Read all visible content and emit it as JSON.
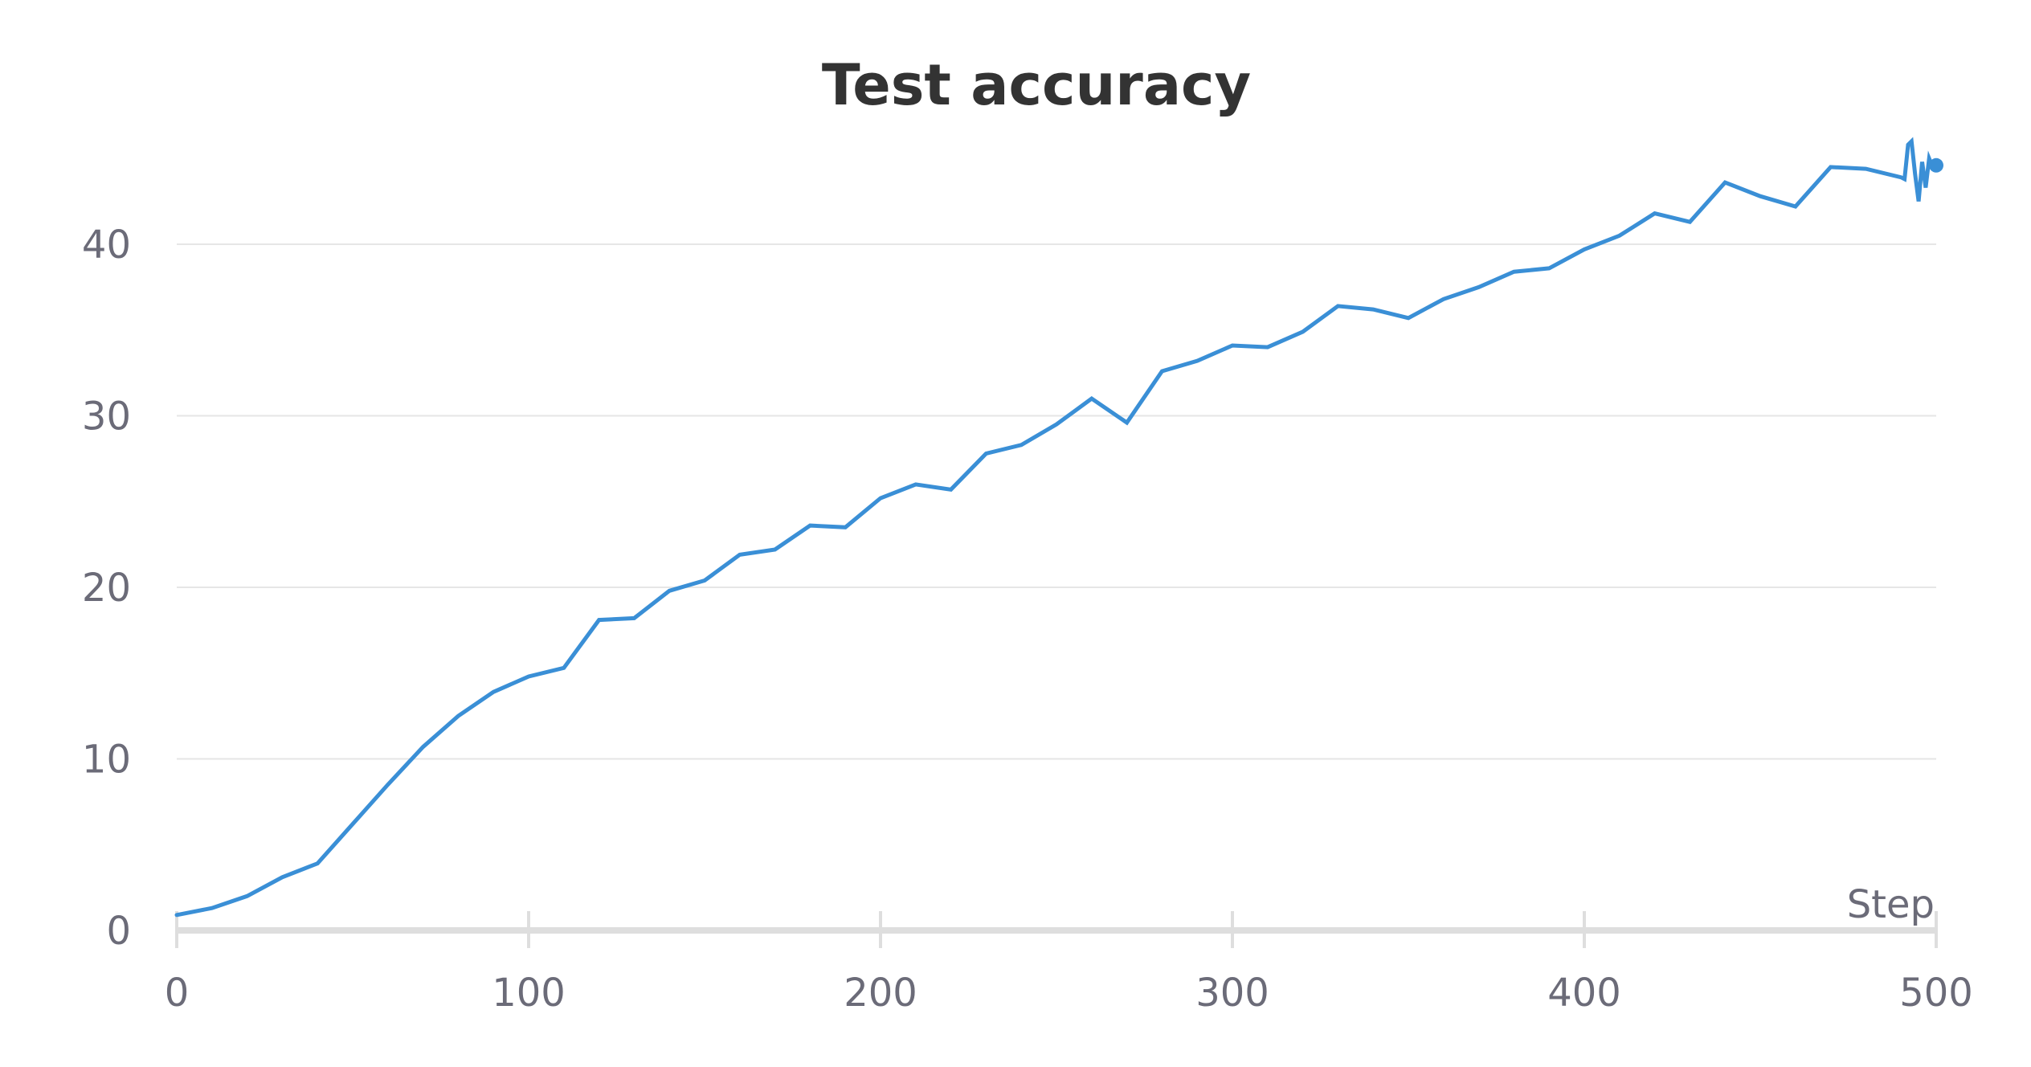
{
  "chart_data": {
    "type": "line",
    "title": "Test accuracy",
    "xlabel": "Step",
    "ylabel": "",
    "xlim": [
      0,
      500
    ],
    "ylim": [
      0,
      45
    ],
    "x_ticks": [
      0,
      100,
      200,
      300,
      400,
      500
    ],
    "y_ticks": [
      0,
      10,
      20,
      30,
      40
    ],
    "grid": "horizontal",
    "legend": "none",
    "series": [
      {
        "color": "#3a8fd6",
        "end_marker": true,
        "x": [
          0,
          10,
          20,
          30,
          40,
          50,
          60,
          70,
          80,
          90,
          100,
          110,
          120,
          130,
          140,
          150,
          160,
          170,
          180,
          190,
          200,
          210,
          220,
          230,
          240,
          250,
          260,
          270,
          280,
          290,
          300,
          310,
          320,
          330,
          340,
          350,
          360,
          370,
          380,
          390,
          400,
          410,
          420,
          430,
          440,
          450,
          460,
          470,
          480,
          490,
          491,
          492,
          493,
          494,
          495,
          496,
          497,
          498,
          499,
          500
        ],
        "y": [
          0.9,
          1.3,
          2.0,
          3.1,
          3.9,
          6.2,
          8.5,
          10.7,
          12.5,
          13.9,
          14.8,
          15.3,
          18.1,
          18.2,
          19.8,
          20.4,
          21.9,
          22.2,
          23.6,
          23.5,
          25.2,
          26.0,
          25.7,
          27.8,
          28.3,
          29.5,
          31.0,
          29.6,
          32.6,
          33.2,
          34.1,
          34.0,
          34.9,
          36.4,
          36.2,
          35.7,
          36.8,
          37.5,
          38.4,
          38.6,
          39.7,
          40.5,
          41.8,
          41.3,
          43.6,
          42.8,
          42.2,
          44.5,
          44.4,
          43.9,
          43.8,
          45.8,
          46.0,
          44.1,
          42.5,
          44.8,
          43.3,
          45.0,
          44.5,
          44.6
        ]
      }
    ]
  }
}
